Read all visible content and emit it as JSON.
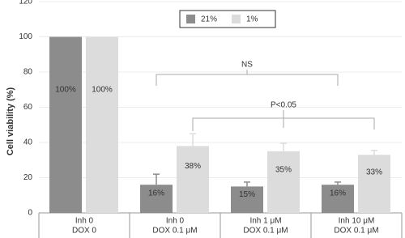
{
  "chart_data": {
    "type": "bar",
    "ylabel": "Cell viability (%)",
    "categories": [
      [
        "Inh 0",
        "DOX 0"
      ],
      [
        "Inh 0",
        "DOX 0.1 μM"
      ],
      [
        "Inh 1 μM",
        "DOX 0.1 μM"
      ],
      [
        "Inh 10 μM",
        "DOX 0.1 μM"
      ]
    ],
    "series": [
      {
        "name": "21%",
        "color": "#8c8c8c",
        "values": [
          100,
          16,
          15,
          16
        ],
        "errors": [
          0,
          6,
          2.5,
          1.5
        ],
        "value_labels": [
          "100%",
          "16%",
          "15%",
          "16%"
        ]
      },
      {
        "name": "1%",
        "color": "#dcdcdc",
        "values": [
          100,
          38,
          35,
          33
        ],
        "errors": [
          0,
          7,
          4.5,
          2.5
        ],
        "value_labels": [
          "100%",
          "38%",
          "35%",
          "33%"
        ]
      }
    ],
    "annotations": [
      "NS",
      "P<0.05"
    ],
    "ylim": [
      0,
      120
    ],
    "yticks": [
      0,
      20,
      40,
      60,
      80,
      100,
      120
    ],
    "grid": true
  }
}
